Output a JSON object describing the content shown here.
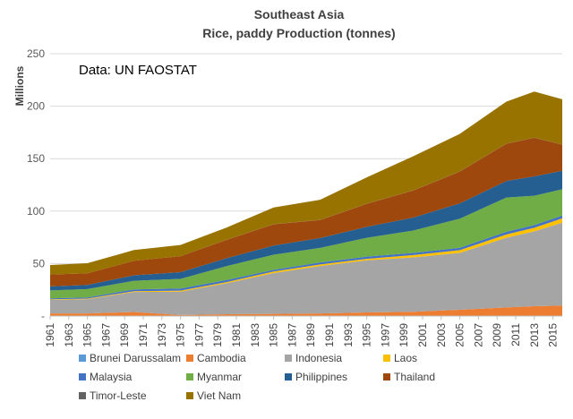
{
  "chart_data": {
    "type": "area",
    "stacked": true,
    "title": "Southeast Asia",
    "subtitle": "Rice, paddy Production (tonnes)",
    "ylabel": "Millions",
    "xlabel": "",
    "annotation": "Data: UN FAOSTAT",
    "ylim": [
      0,
      250
    ],
    "yticks": [
      0,
      50,
      100,
      150,
      200,
      250
    ],
    "ytick_labels": [
      "-",
      "50",
      "100",
      "150",
      "200",
      "250"
    ],
    "xlim": [
      1961,
      2016
    ],
    "xticks": [
      1961,
      1963,
      1965,
      1967,
      1969,
      1971,
      1973,
      1975,
      1977,
      1979,
      1981,
      1983,
      1985,
      1987,
      1989,
      1991,
      1993,
      1995,
      1997,
      1999,
      2001,
      2003,
      2005,
      2007,
      2009,
      2011,
      2013,
      2015
    ],
    "grid": true,
    "legend_position": "bottom",
    "colors": {
      "Brunei Darussalam": "#5b9bd5",
      "Cambodia": "#ed7d31",
      "Indonesia": "#a5a5a5",
      "Laos": "#ffc000",
      "Malaysia": "#4472c4",
      "Myanmar": "#70ad47",
      "Philippines": "#255e91",
      "Thailand": "#9e480e",
      "Timor-Leste": "#636363",
      "Viet Nam": "#997300"
    },
    "legend_order": [
      "Brunei Darussalam",
      "Cambodia",
      "Indonesia",
      "Laos",
      "Malaysia",
      "Myanmar",
      "Philippines",
      "Thailand",
      "Timor-Leste",
      "Viet Nam"
    ],
    "x": [
      1961,
      1965,
      1970,
      1975,
      1980,
      1985,
      1990,
      1995,
      2000,
      2005,
      2010,
      2013,
      2016
    ],
    "series": [
      {
        "name": "Brunei Darussalam",
        "values": [
          0,
          0,
          0,
          0,
          0,
          0,
          0,
          0,
          0,
          0,
          0,
          0,
          0
        ]
      },
      {
        "name": "Cambodia",
        "values": [
          2.4,
          2.5,
          3.8,
          1.0,
          1.7,
          2.0,
          2.5,
          3.4,
          4.0,
          6.0,
          8.2,
          9.4,
          10.0
        ]
      },
      {
        "name": "Indonesia",
        "values": [
          13.0,
          13.6,
          19.1,
          22.3,
          29.7,
          39.0,
          45.2,
          49.7,
          51.9,
          54.2,
          66.5,
          71.3,
          79.0
        ]
      },
      {
        "name": "Laos",
        "values": [
          0.5,
          0.5,
          0.8,
          0.9,
          1.0,
          1.4,
          1.5,
          1.4,
          2.2,
          2.6,
          3.1,
          3.4,
          4.1
        ]
      },
      {
        "name": "Malaysia",
        "values": [
          1.0,
          1.1,
          1.7,
          2.0,
          2.0,
          1.7,
          1.9,
          2.1,
          2.1,
          2.3,
          2.5,
          2.6,
          2.7
        ]
      },
      {
        "name": "Myanmar",
        "values": [
          7.5,
          8.0,
          8.2,
          9.2,
          13.3,
          14.3,
          13.9,
          17.9,
          21.3,
          27.7,
          32.6,
          28.0,
          25.0
        ]
      },
      {
        "name": "Philippines",
        "values": [
          3.9,
          4.0,
          5.2,
          6.4,
          7.6,
          8.8,
          9.3,
          10.5,
          12.4,
          14.6,
          15.8,
          18.4,
          17.6
        ]
      },
      {
        "name": "Thailand",
        "values": [
          11.3,
          11.0,
          13.9,
          15.3,
          17.4,
          20.3,
          17.2,
          22.0,
          25.8,
          30.3,
          35.6,
          36.8,
          25.0
        ]
      },
      {
        "name": "Timor-Leste",
        "values": [
          0,
          0,
          0,
          0,
          0.1,
          0.1,
          0.1,
          0.1,
          0.1,
          0.1,
          0.1,
          0.1,
          0.1
        ]
      },
      {
        "name": "Viet Nam",
        "values": [
          9.0,
          9.6,
          10.2,
          10.6,
          11.7,
          15.9,
          19.2,
          25.0,
          32.5,
          35.8,
          40.0,
          44.0,
          43.1
        ]
      }
    ]
  }
}
